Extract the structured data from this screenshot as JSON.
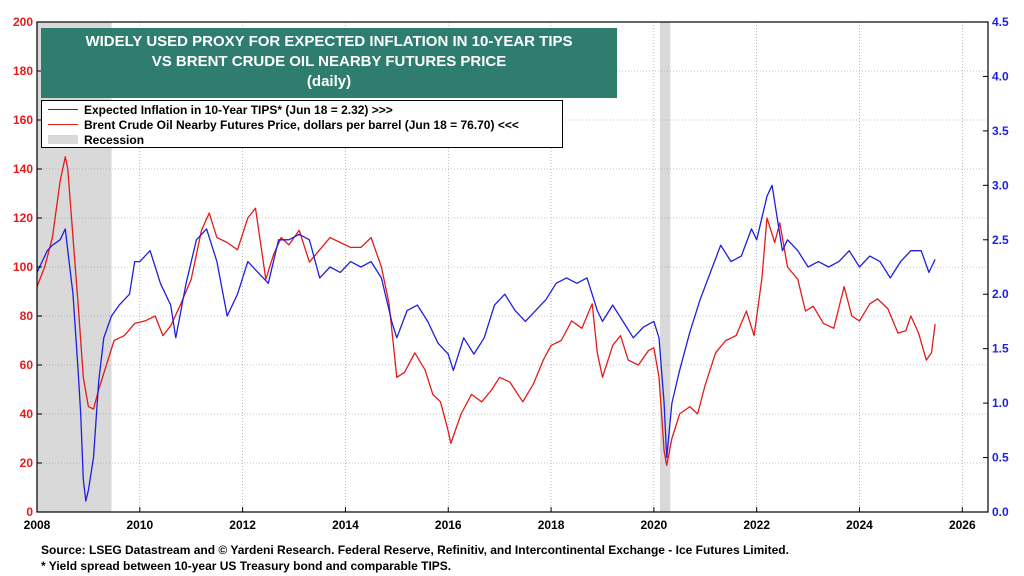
{
  "title_lines": [
    "WIDELY USED PROXY FOR EXPECTED INFLATION IN 10-YEAR TIPS",
    "VS BRENT CRUDE OIL NEARBY FUTURES PRICE",
    "(daily)"
  ],
  "legend": {
    "tips": "Expected Inflation in 10-Year TIPS* (Jun 18 = 2.32) >>>",
    "brent": "Brent Crude Oil Nearby Futures Price, dollars per barrel (Jun 18 = 76.70) <<<",
    "recession": "Recession"
  },
  "footer": {
    "source": "Source: LSEG Datastream and © Yardeni Research. Federal Reserve, Refinitiv, and Intercontinental Exchange - Ice Futures Limited.",
    "note": "* Yield spread between 10-year US Treasury bond and comparable TIPS."
  },
  "colors": {
    "tips": "#1f1fe0",
    "brent": "#e31b1b",
    "recession": "#d9d9d9",
    "title_bg": "#2e7d6e"
  },
  "chart_data": {
    "type": "line",
    "x_range": [
      2008.0,
      2026.5
    ],
    "x_ticks": [
      "2008",
      "2010",
      "2012",
      "2014",
      "2016",
      "2018",
      "2020",
      "2022",
      "2024",
      "2026"
    ],
    "y_left_range": [
      0,
      200
    ],
    "y_left_ticks": [
      "0",
      "20",
      "40",
      "60",
      "80",
      "100",
      "120",
      "140",
      "160",
      "180",
      "200"
    ],
    "y_right_range": [
      0.0,
      4.5
    ],
    "y_right_ticks": [
      "0.0",
      "0.5",
      "1.0",
      "1.5",
      "2.0",
      "2.5",
      "3.0",
      "3.5",
      "4.0",
      "4.5"
    ],
    "recessions": [
      [
        2008.0,
        2009.45
      ],
      [
        2020.12,
        2020.32
      ]
    ],
    "series": [
      {
        "name": "Expected Inflation in 10-Year TIPS* (Jun 18 = 2.32) >>>",
        "axis": "right",
        "points": [
          [
            2008.0,
            2.2
          ],
          [
            2008.1,
            2.3
          ],
          [
            2008.2,
            2.4
          ],
          [
            2008.3,
            2.45
          ],
          [
            2008.45,
            2.5
          ],
          [
            2008.55,
            2.6
          ],
          [
            2008.6,
            2.4
          ],
          [
            2008.7,
            2.0
          ],
          [
            2008.8,
            1.3
          ],
          [
            2008.85,
            0.9
          ],
          [
            2008.9,
            0.3
          ],
          [
            2008.95,
            0.1
          ],
          [
            2009.0,
            0.2
          ],
          [
            2009.1,
            0.5
          ],
          [
            2009.2,
            1.2
          ],
          [
            2009.3,
            1.6
          ],
          [
            2009.45,
            1.8
          ],
          [
            2009.6,
            1.9
          ],
          [
            2009.8,
            2.0
          ],
          [
            2009.9,
            2.3
          ],
          [
            2010.0,
            2.3
          ],
          [
            2010.2,
            2.4
          ],
          [
            2010.4,
            2.1
          ],
          [
            2010.6,
            1.9
          ],
          [
            2010.7,
            1.6
          ],
          [
            2010.9,
            2.1
          ],
          [
            2011.1,
            2.5
          ],
          [
            2011.3,
            2.6
          ],
          [
            2011.5,
            2.3
          ],
          [
            2011.7,
            1.8
          ],
          [
            2011.9,
            2.0
          ],
          [
            2012.1,
            2.3
          ],
          [
            2012.3,
            2.2
          ],
          [
            2012.5,
            2.1
          ],
          [
            2012.7,
            2.5
          ],
          [
            2012.9,
            2.5
          ],
          [
            2013.1,
            2.55
          ],
          [
            2013.3,
            2.5
          ],
          [
            2013.5,
            2.15
          ],
          [
            2013.7,
            2.25
          ],
          [
            2013.9,
            2.2
          ],
          [
            2014.1,
            2.3
          ],
          [
            2014.3,
            2.25
          ],
          [
            2014.5,
            2.3
          ],
          [
            2014.7,
            2.15
          ],
          [
            2014.9,
            1.75
          ],
          [
            2015.0,
            1.6
          ],
          [
            2015.2,
            1.85
          ],
          [
            2015.4,
            1.9
          ],
          [
            2015.6,
            1.75
          ],
          [
            2015.8,
            1.55
          ],
          [
            2016.0,
            1.45
          ],
          [
            2016.1,
            1.3
          ],
          [
            2016.3,
            1.6
          ],
          [
            2016.5,
            1.45
          ],
          [
            2016.7,
            1.6
          ],
          [
            2016.9,
            1.9
          ],
          [
            2017.1,
            2.0
          ],
          [
            2017.3,
            1.85
          ],
          [
            2017.5,
            1.75
          ],
          [
            2017.7,
            1.85
          ],
          [
            2017.9,
            1.95
          ],
          [
            2018.1,
            2.1
          ],
          [
            2018.3,
            2.15
          ],
          [
            2018.5,
            2.1
          ],
          [
            2018.7,
            2.15
          ],
          [
            2018.9,
            1.85
          ],
          [
            2019.0,
            1.75
          ],
          [
            2019.2,
            1.9
          ],
          [
            2019.4,
            1.75
          ],
          [
            2019.6,
            1.6
          ],
          [
            2019.8,
            1.7
          ],
          [
            2020.0,
            1.75
          ],
          [
            2020.1,
            1.6
          ],
          [
            2020.2,
            1.0
          ],
          [
            2020.25,
            0.5
          ],
          [
            2020.35,
            1.0
          ],
          [
            2020.5,
            1.3
          ],
          [
            2020.7,
            1.65
          ],
          [
            2020.9,
            1.95
          ],
          [
            2021.1,
            2.2
          ],
          [
            2021.3,
            2.45
          ],
          [
            2021.5,
            2.3
          ],
          [
            2021.7,
            2.35
          ],
          [
            2021.9,
            2.6
          ],
          [
            2022.0,
            2.5
          ],
          [
            2022.2,
            2.9
          ],
          [
            2022.3,
            3.0
          ],
          [
            2022.4,
            2.7
          ],
          [
            2022.5,
            2.4
          ],
          [
            2022.6,
            2.5
          ],
          [
            2022.8,
            2.4
          ],
          [
            2023.0,
            2.25
          ],
          [
            2023.2,
            2.3
          ],
          [
            2023.4,
            2.25
          ],
          [
            2023.6,
            2.3
          ],
          [
            2023.8,
            2.4
          ],
          [
            2024.0,
            2.25
          ],
          [
            2024.2,
            2.35
          ],
          [
            2024.4,
            2.3
          ],
          [
            2024.6,
            2.15
          ],
          [
            2024.8,
            2.3
          ],
          [
            2025.0,
            2.4
          ],
          [
            2025.2,
            2.4
          ],
          [
            2025.35,
            2.2
          ],
          [
            2025.47,
            2.32
          ]
        ]
      },
      {
        "name": "Brent Crude Oil Nearby Futures Price, dollars per barrel (Jun 18 = 76.70) <<<",
        "axis": "left",
        "points": [
          [
            2008.0,
            92
          ],
          [
            2008.15,
            100
          ],
          [
            2008.3,
            112
          ],
          [
            2008.45,
            135
          ],
          [
            2008.55,
            145
          ],
          [
            2008.6,
            140
          ],
          [
            2008.7,
            112
          ],
          [
            2008.8,
            85
          ],
          [
            2008.9,
            55
          ],
          [
            2009.0,
            43
          ],
          [
            2009.1,
            42
          ],
          [
            2009.2,
            50
          ],
          [
            2009.35,
            60
          ],
          [
            2009.5,
            70
          ],
          [
            2009.7,
            72
          ],
          [
            2009.9,
            77
          ],
          [
            2010.1,
            78
          ],
          [
            2010.3,
            80
          ],
          [
            2010.45,
            72
          ],
          [
            2010.6,
            76
          ],
          [
            2010.8,
            85
          ],
          [
            2011.0,
            95
          ],
          [
            2011.2,
            115
          ],
          [
            2011.35,
            122
          ],
          [
            2011.5,
            112
          ],
          [
            2011.7,
            110
          ],
          [
            2011.9,
            107
          ],
          [
            2012.1,
            120
          ],
          [
            2012.25,
            124
          ],
          [
            2012.45,
            95
          ],
          [
            2012.6,
            105
          ],
          [
            2012.75,
            112
          ],
          [
            2012.9,
            109
          ],
          [
            2013.1,
            115
          ],
          [
            2013.3,
            102
          ],
          [
            2013.5,
            107
          ],
          [
            2013.7,
            112
          ],
          [
            2013.9,
            110
          ],
          [
            2014.1,
            108
          ],
          [
            2014.3,
            108
          ],
          [
            2014.5,
            112
          ],
          [
            2014.7,
            100
          ],
          [
            2014.85,
            85
          ],
          [
            2015.0,
            55
          ],
          [
            2015.15,
            57
          ],
          [
            2015.35,
            65
          ],
          [
            2015.55,
            58
          ],
          [
            2015.7,
            48
          ],
          [
            2015.85,
            45
          ],
          [
            2016.0,
            33
          ],
          [
            2016.05,
            28
          ],
          [
            2016.25,
            40
          ],
          [
            2016.45,
            48
          ],
          [
            2016.65,
            45
          ],
          [
            2016.85,
            50
          ],
          [
            2017.0,
            55
          ],
          [
            2017.2,
            53
          ],
          [
            2017.45,
            45
          ],
          [
            2017.65,
            52
          ],
          [
            2017.85,
            62
          ],
          [
            2018.0,
            68
          ],
          [
            2018.2,
            70
          ],
          [
            2018.4,
            78
          ],
          [
            2018.6,
            75
          ],
          [
            2018.8,
            85
          ],
          [
            2018.9,
            65
          ],
          [
            2019.0,
            55
          ],
          [
            2019.2,
            68
          ],
          [
            2019.35,
            72
          ],
          [
            2019.5,
            62
          ],
          [
            2019.7,
            60
          ],
          [
            2019.9,
            66
          ],
          [
            2020.0,
            67
          ],
          [
            2020.1,
            55
          ],
          [
            2020.2,
            25
          ],
          [
            2020.25,
            19
          ],
          [
            2020.35,
            30
          ],
          [
            2020.5,
            40
          ],
          [
            2020.7,
            43
          ],
          [
            2020.85,
            40
          ],
          [
            2021.0,
            52
          ],
          [
            2021.2,
            65
          ],
          [
            2021.4,
            70
          ],
          [
            2021.6,
            72
          ],
          [
            2021.8,
            82
          ],
          [
            2021.95,
            72
          ],
          [
            2022.1,
            95
          ],
          [
            2022.2,
            120
          ],
          [
            2022.35,
            110
          ],
          [
            2022.45,
            118
          ],
          [
            2022.6,
            100
          ],
          [
            2022.8,
            95
          ],
          [
            2022.95,
            82
          ],
          [
            2023.1,
            84
          ],
          [
            2023.3,
            77
          ],
          [
            2023.5,
            75
          ],
          [
            2023.7,
            92
          ],
          [
            2023.85,
            80
          ],
          [
            2024.0,
            78
          ],
          [
            2024.2,
            85
          ],
          [
            2024.35,
            87
          ],
          [
            2024.55,
            83
          ],
          [
            2024.75,
            73
          ],
          [
            2024.9,
            74
          ],
          [
            2025.0,
            80
          ],
          [
            2025.15,
            73
          ],
          [
            2025.3,
            62
          ],
          [
            2025.4,
            65
          ],
          [
            2025.47,
            76.7
          ]
        ]
      }
    ]
  }
}
